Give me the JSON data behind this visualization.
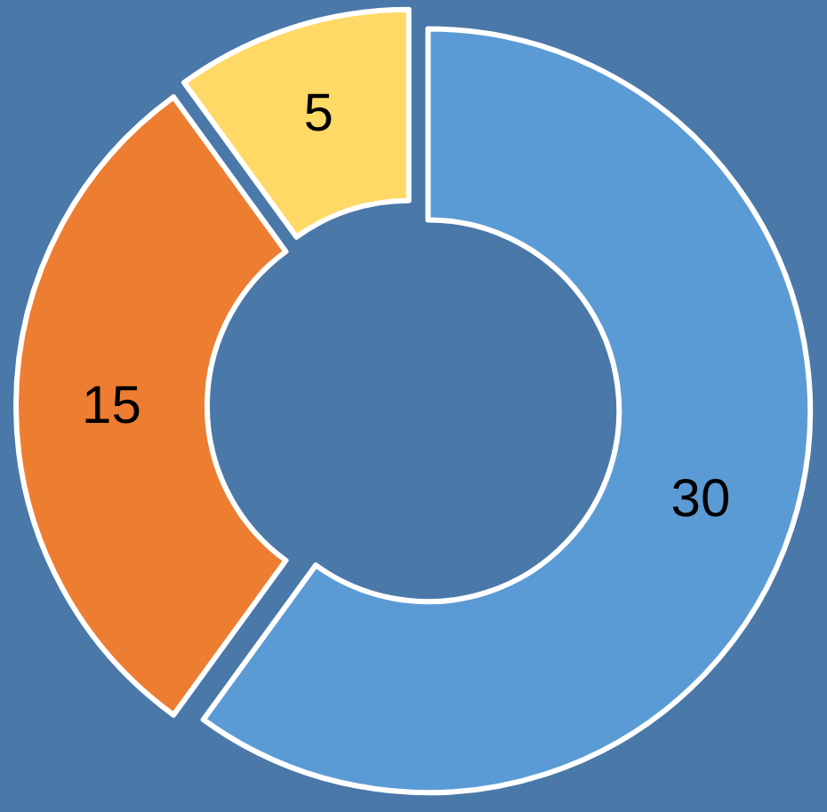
{
  "chart_data": {
    "type": "donut",
    "categories": [
      null,
      null,
      null
    ],
    "values": [
      30,
      15,
      5
    ],
    "colors": [
      "#5b9bd5",
      "#ed7d31",
      "#ffd966"
    ],
    "data_labels": true,
    "legend": false
  }
}
